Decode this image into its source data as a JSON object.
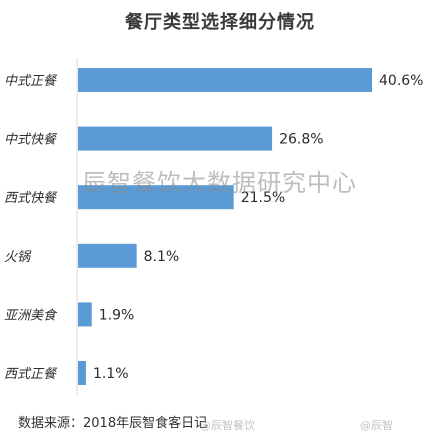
{
  "chart_data": {
    "type": "bar",
    "orientation": "horizontal",
    "title": "餐厅类型选择细分情况",
    "categories": [
      "中式正餐",
      "中式快餐",
      "西式快餐",
      "火锅",
      "亚洲美食",
      "西式正餐"
    ],
    "values": [
      40.6,
      26.8,
      21.5,
      8.1,
      1.9,
      1.1
    ],
    "value_labels": [
      "40.6%",
      "26.8%",
      "21.5%",
      "8.1%",
      "1.9%",
      "1.1%"
    ],
    "unit": "%",
    "xlim": [
      0,
      40.6
    ],
    "bar_color": "#5b9bd5",
    "grid": false,
    "legend": "none"
  },
  "watermark": "辰智餐饮大数据研究中心",
  "source_note": "数据来源：2018年辰智食客日记",
  "weibo_marks": [
    "@辰智餐饮",
    "@辰智"
  ]
}
